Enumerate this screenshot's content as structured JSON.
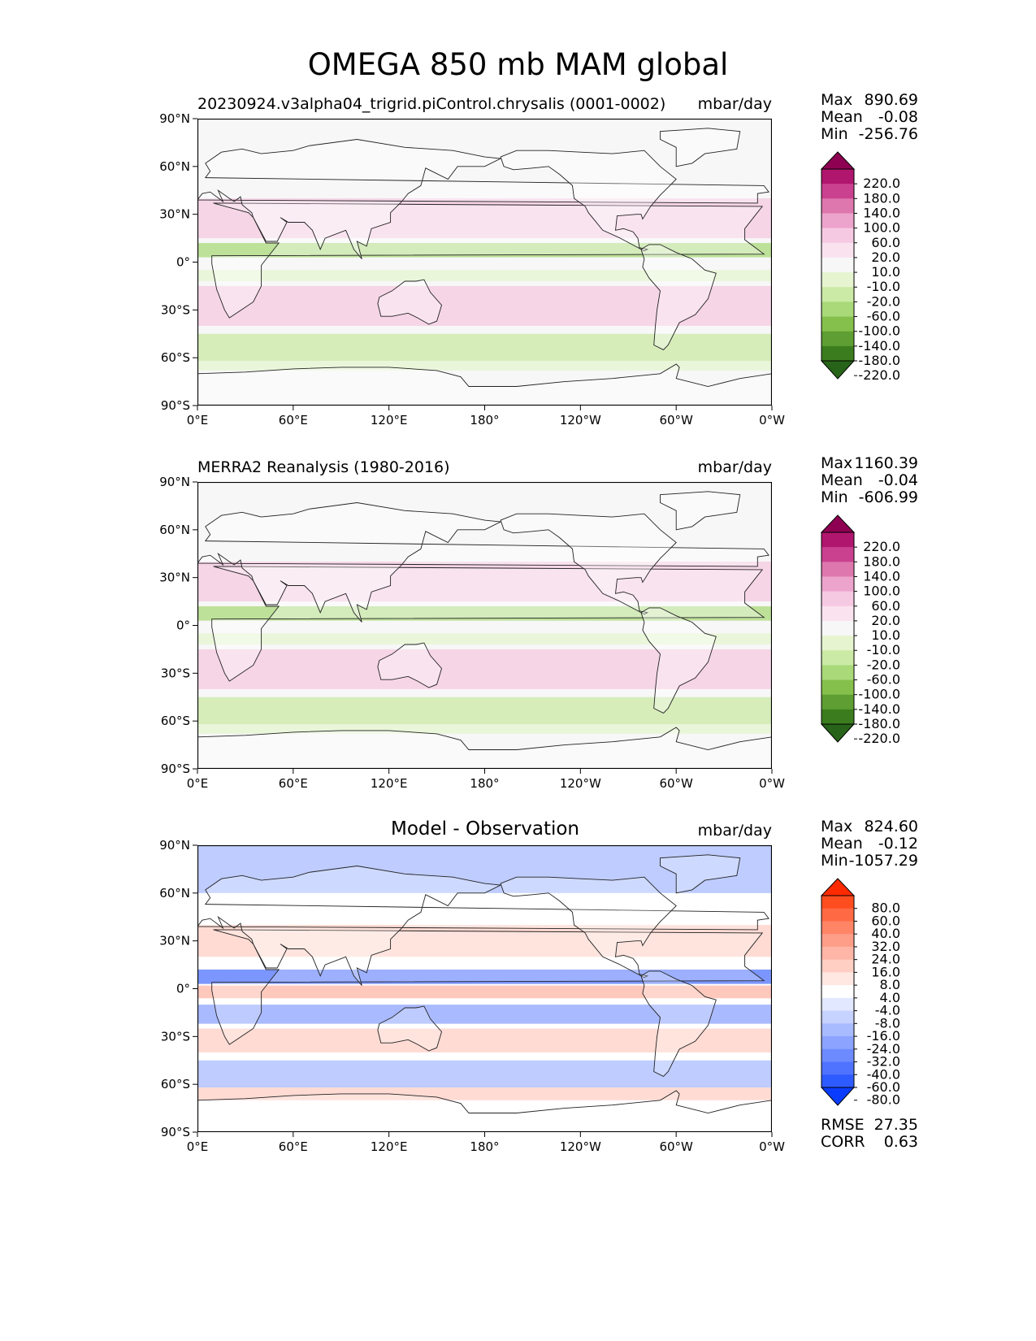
{
  "title": "OMEGA 850 mb MAM global",
  "panels": [
    {
      "id": "model",
      "title_left": "20230924.v3alpha04_trigrid.piControl.chrysalis (0001-0002)",
      "title_center": "",
      "units": "mbar/day",
      "stats": [
        {
          "label": "Max",
          "value": "890.69"
        },
        {
          "label": "Mean",
          "value": "-0.08"
        },
        {
          "label": "Min",
          "value": "-256.76"
        }
      ],
      "colorbar": {
        "labels": [
          "220.0",
          "180.0",
          "140.0",
          "100.0",
          "60.0",
          "20.0",
          "10.0",
          "-10.0",
          "-20.0",
          "-60.0",
          "-100.0",
          "-140.0",
          "-180.0",
          "-220.0"
        ],
        "colors": [
          "#8e0152",
          "#b0166e",
          "#c9418f",
          "#de77ae",
          "#eca4cc",
          "#f6c9e2",
          "#fbe2ef",
          "#f7f7f7",
          "#e6f5d0",
          "#cbeaa5",
          "#a9d979",
          "#86c04c",
          "#5e9e32",
          "#3b7d1e",
          "#276419"
        ]
      },
      "bottom_stats": []
    },
    {
      "id": "observation",
      "title_left": "MERRA2 Reanalysis (1980-2016)",
      "title_center": "",
      "units": "mbar/day",
      "stats": [
        {
          "label": "Max",
          "value": "1160.39"
        },
        {
          "label": "Mean",
          "value": "-0.04"
        },
        {
          "label": "Min",
          "value": "-606.99"
        }
      ],
      "colorbar": {
        "labels": [
          "220.0",
          "180.0",
          "140.0",
          "100.0",
          "60.0",
          "20.0",
          "10.0",
          "-10.0",
          "-20.0",
          "-60.0",
          "-100.0",
          "-140.0",
          "-180.0",
          "-220.0"
        ],
        "colors": [
          "#8e0152",
          "#b0166e",
          "#c9418f",
          "#de77ae",
          "#eca4cc",
          "#f6c9e2",
          "#fbe2ef",
          "#f7f7f7",
          "#e6f5d0",
          "#cbeaa5",
          "#a9d979",
          "#86c04c",
          "#5e9e32",
          "#3b7d1e",
          "#276419"
        ]
      },
      "bottom_stats": []
    },
    {
      "id": "difference",
      "title_left": "",
      "title_center": "Model - Observation",
      "units": "mbar/day",
      "stats": [
        {
          "label": "Max",
          "value": "824.60"
        },
        {
          "label": "Mean",
          "value": "-0.12"
        },
        {
          "label": "Min",
          "value": "-1057.29"
        }
      ],
      "colorbar": {
        "labels": [
          "80.0",
          "60.0",
          "40.0",
          "32.0",
          "24.0",
          "16.0",
          "8.0",
          "4.0",
          "-4.0",
          "-8.0",
          "-16.0",
          "-24.0",
          "-32.0",
          "-40.0",
          "-60.0",
          "-80.0"
        ],
        "colors": [
          "#ff2a00",
          "#ff4d1f",
          "#ff6a44",
          "#ff8566",
          "#ff9e88",
          "#ffb6a6",
          "#ffcfc4",
          "#ffe8e2",
          "#ffffff",
          "#e2e8ff",
          "#c6d2ff",
          "#a8bbff",
          "#8ca3ff",
          "#6d8bff",
          "#4f73ff",
          "#2e5bff",
          "#0a3cff"
        ]
      },
      "bottom_stats": [
        {
          "label": "RMSE",
          "value": "27.35"
        },
        {
          "label": "CORR",
          "value": "0.63"
        }
      ]
    }
  ],
  "axes": {
    "lat_labels": [
      "90°N",
      "60°N",
      "30°N",
      "0°",
      "30°S",
      "60°S",
      "90°S"
    ],
    "lon_labels": [
      "0°E",
      "60°E",
      "120°E",
      "180°",
      "120°W",
      "60°W",
      "0°W"
    ]
  }
}
